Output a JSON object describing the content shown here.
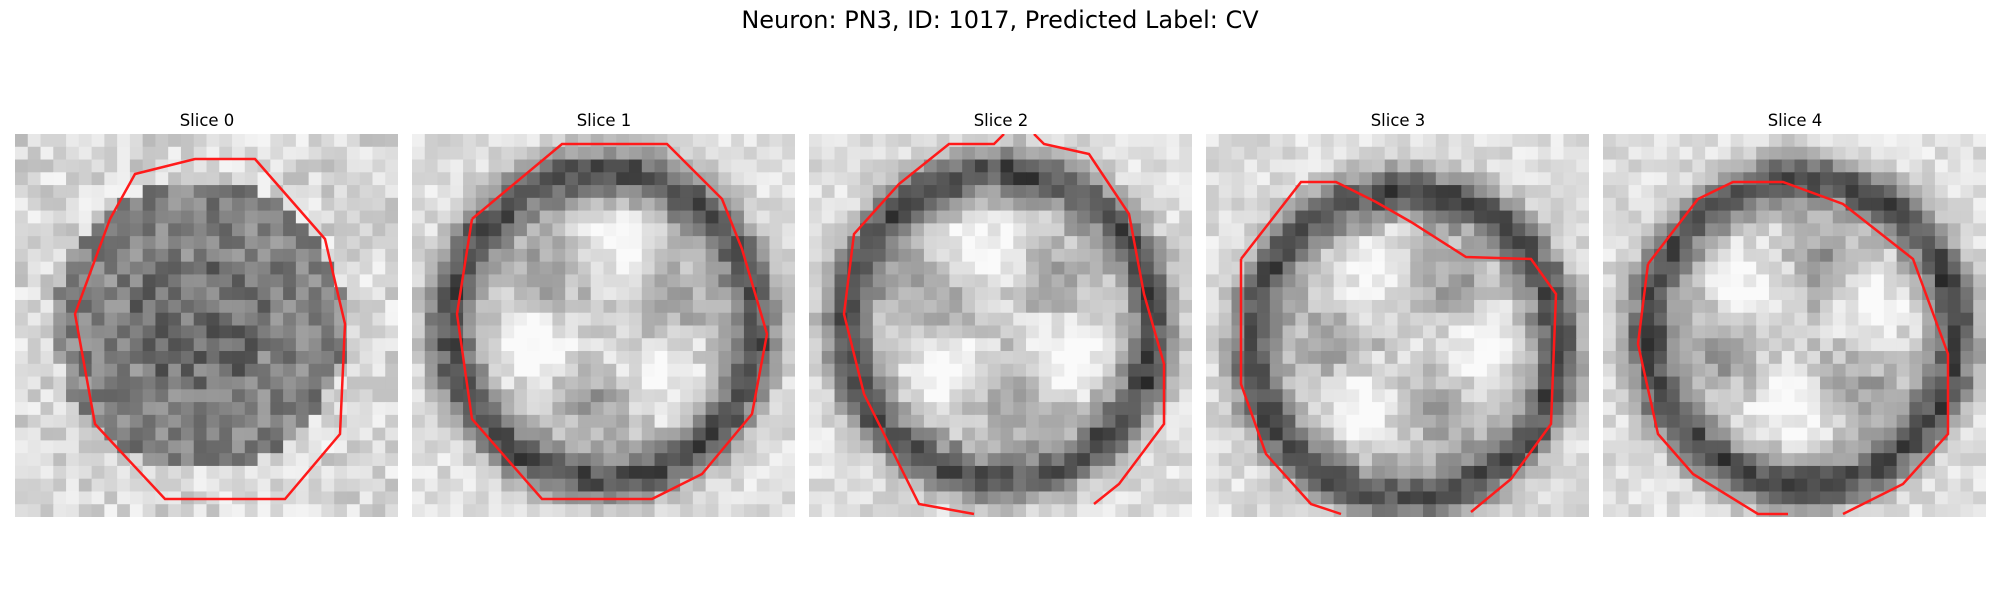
{
  "figure": {
    "title": "Neuron: PN3, ID: 1017, Predicted Label: CV",
    "colors": {
      "contour": "#ff1a1a",
      "background": "#ffffff"
    }
  },
  "panels": [
    {
      "title": "Slice 0",
      "image": "grayscale-micrograph"
    },
    {
      "title": "Slice 1",
      "image": "grayscale-micrograph"
    },
    {
      "title": "Slice 2",
      "image": "grayscale-micrograph"
    },
    {
      "title": "Slice 3",
      "image": "grayscale-micrograph"
    },
    {
      "title": "Slice 4",
      "image": "grayscale-micrograph"
    }
  ]
}
